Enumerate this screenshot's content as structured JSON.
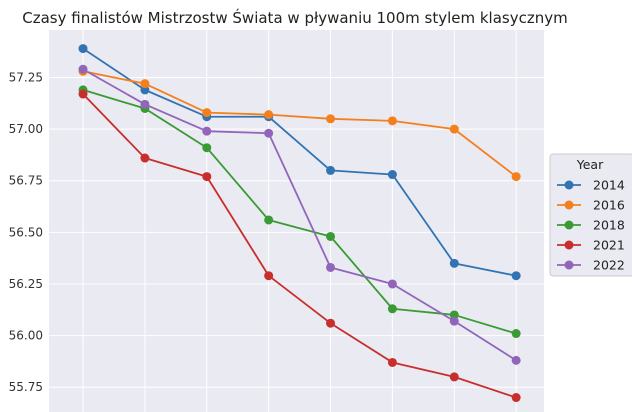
{
  "chart_data": {
    "type": "line",
    "title": "Czasy finalistów Mistrzostw Świata w pływaniu 100m stylem klasycznym",
    "xlabel": "",
    "ylabel": "",
    "x": [
      1,
      2,
      3,
      4,
      5,
      6,
      7,
      8
    ],
    "xlim": [
      0.45,
      8.45
    ],
    "ylim": [
      55.63,
      57.48
    ],
    "yticks": [
      55.75,
      56.0,
      56.25,
      56.5,
      56.75,
      57.0,
      57.25
    ],
    "ytick_labels": [
      "55.75",
      "56.00",
      "56.25",
      "56.50",
      "56.75",
      "57.00",
      "57.25"
    ],
    "grid": true,
    "legend_title": "Year",
    "legend_position": "center-right-outside",
    "series": [
      {
        "name": "2014",
        "color": "#3274b3",
        "values": [
          57.39,
          57.19,
          57.06,
          57.06,
          56.8,
          56.78,
          56.35,
          56.29
        ]
      },
      {
        "name": "2016",
        "color": "#f3801d",
        "values": [
          57.28,
          57.22,
          57.08,
          57.07,
          57.05,
          57.04,
          57.0,
          56.77
        ]
      },
      {
        "name": "2018",
        "color": "#3a9a33",
        "values": [
          57.19,
          57.1,
          56.91,
          56.56,
          56.48,
          56.13,
          56.1,
          56.01
        ]
      },
      {
        "name": "2021",
        "color": "#c82e2c",
        "values": [
          57.17,
          56.86,
          56.77,
          56.29,
          56.06,
          55.87,
          55.8,
          55.7
        ]
      },
      {
        "name": "2022",
        "color": "#9166ba",
        "values": [
          57.29,
          57.12,
          56.99,
          56.98,
          56.33,
          56.25,
          56.07,
          55.88
        ]
      }
    ]
  }
}
